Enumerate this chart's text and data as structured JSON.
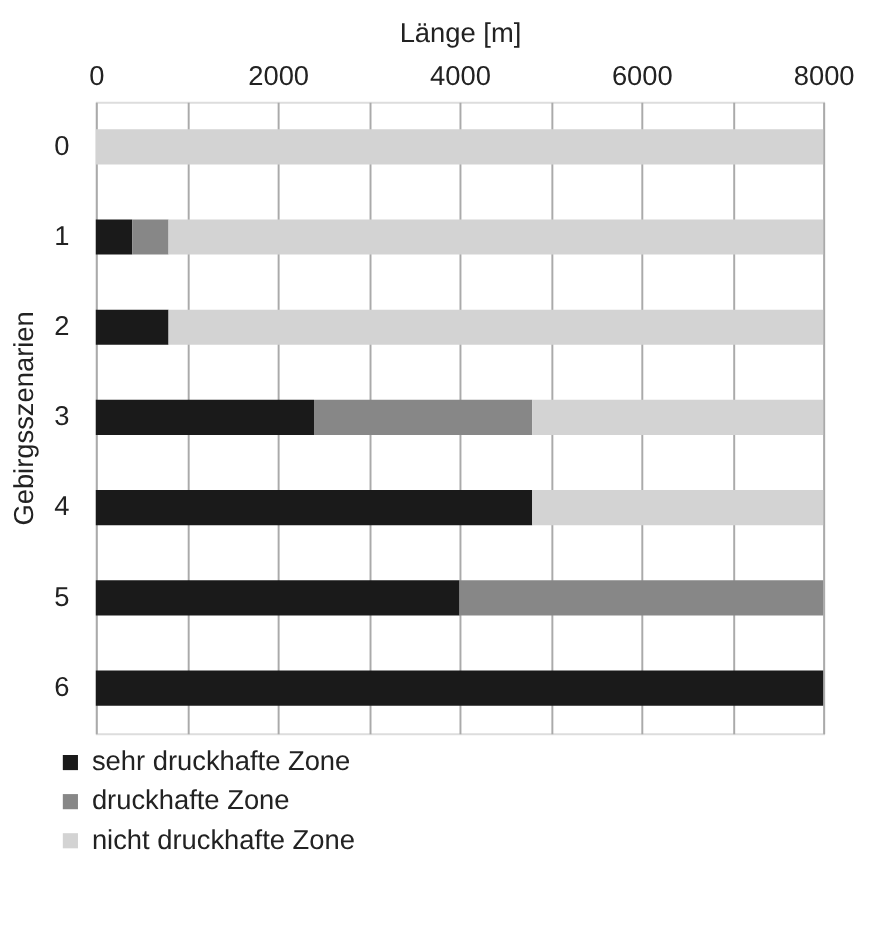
{
  "chart_data": {
    "type": "bar",
    "orientation": "horizontal",
    "stacked": true,
    "xlabel": "Länge [m]",
    "ylabel": "Gebirgsszenarien",
    "categories": [
      "0",
      "1",
      "2",
      "3",
      "4",
      "5",
      "6"
    ],
    "series": [
      {
        "name": "sehr druckhafte Zone",
        "color": "#1a1a1a",
        "values": [
          0,
          400,
          800,
          2400,
          4800,
          4000,
          8000
        ]
      },
      {
        "name": "druckhafte Zone",
        "color": "#878787",
        "values": [
          0,
          400,
          0,
          2400,
          0,
          4000,
          0
        ]
      },
      {
        "name": "nicht druckhafte Zone",
        "color": "#d3d3d3",
        "values": [
          8000,
          7200,
          7200,
          3200,
          3200,
          0,
          0
        ]
      }
    ],
    "xlim": [
      0,
      8000
    ],
    "xticks": [
      0,
      {
        "value": 1000,
        "label": null
      },
      2000,
      {
        "value": 3000,
        "label": null
      },
      4000,
      {
        "value": 5000,
        "label": null
      },
      6000,
      {
        "value": 7000,
        "label": null
      },
      8000
    ],
    "grid": "x",
    "legend": "bottom"
  }
}
